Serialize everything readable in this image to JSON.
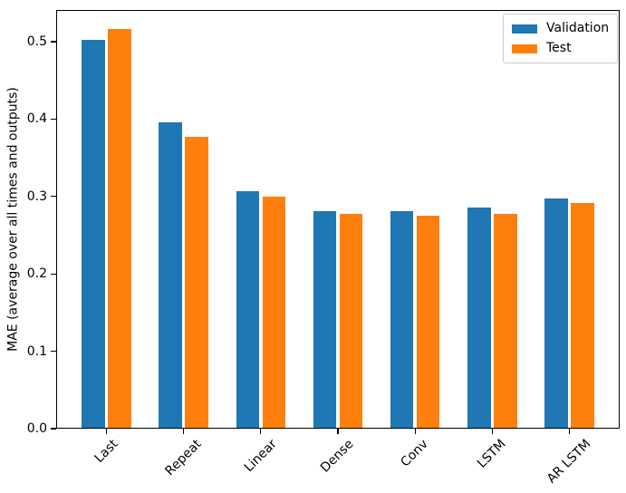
{
  "figure": {
    "background": "#ffffff",
    "text_color": "#000000",
    "spine_color": "#000000"
  },
  "chart_data": {
    "type": "bar",
    "title": "",
    "xlabel": "",
    "ylabel": "MAE (average over all times and outputs)",
    "categories": [
      "Last",
      "Repeat",
      "Linear",
      "Dense",
      "Conv",
      "LSTM",
      "AR LSTM"
    ],
    "series": [
      {
        "name": "Validation",
        "color": "#1f77b4",
        "values": [
          0.502,
          0.396,
          0.307,
          0.281,
          0.281,
          0.286,
          0.298
        ]
      },
      {
        "name": "Test",
        "color": "#ff7f0e",
        "values": [
          0.516,
          0.377,
          0.3,
          0.277,
          0.275,
          0.277,
          0.292
        ]
      }
    ],
    "ylim": [
      0,
      0.541
    ],
    "yticks": [
      0.0,
      0.1,
      0.2,
      0.3,
      0.4,
      0.5
    ],
    "ytick_labels": [
      "0.0",
      "0.1",
      "0.2",
      "0.3",
      "0.4",
      "0.5"
    ],
    "xtick_rotation": 45,
    "grid": false,
    "legend_position": "upper right",
    "bar_width": 0.3,
    "bar_offset": 0.17
  }
}
